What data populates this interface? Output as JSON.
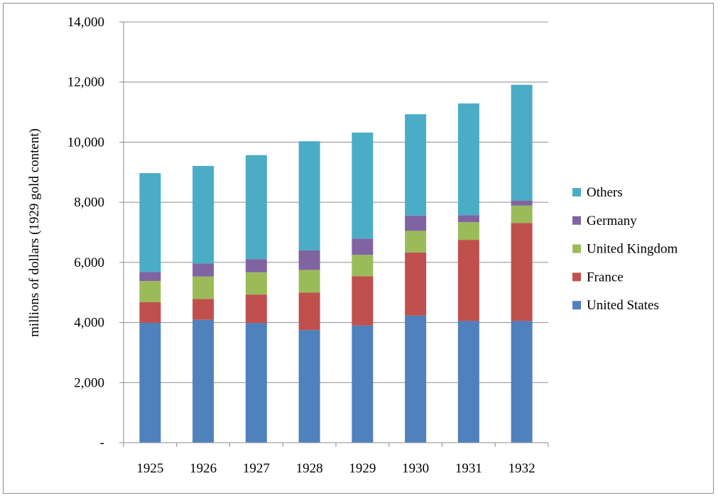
{
  "chart_data": {
    "type": "bar",
    "stacked": true,
    "title": "",
    "xlabel": "",
    "ylabel": "millions of dollars (1929 gold content)",
    "ylim": [
      0,
      14000
    ],
    "yticks": [
      0,
      2000,
      4000,
      6000,
      8000,
      10000,
      12000,
      14000
    ],
    "ytick_labels": [
      "-",
      "2,000",
      "4,000",
      "6,000",
      "8,000",
      "10,000",
      "12,000",
      "14,000"
    ],
    "grid": true,
    "legend": "right",
    "categories": [
      "1925",
      "1926",
      "1927",
      "1928",
      "1929",
      "1930",
      "1931",
      "1932"
    ],
    "series": [
      {
        "name": "United States",
        "color": "#4f81bd",
        "values": [
          3990,
          4090,
          3980,
          3750,
          3900,
          4230,
          4050,
          4050
        ]
      },
      {
        "name": "France",
        "color": "#c0504d",
        "values": [
          690,
          690,
          950,
          1250,
          1640,
          2100,
          2700,
          3260
        ]
      },
      {
        "name": "United Kingdom",
        "color": "#9bbb59",
        "values": [
          700,
          750,
          740,
          750,
          710,
          720,
          590,
          580
        ]
      },
      {
        "name": "Germany",
        "color": "#8064a2",
        "values": [
          300,
          430,
          440,
          650,
          540,
          510,
          230,
          170
        ]
      },
      {
        "name": "Others",
        "color": "#4bacc6",
        "values": [
          3290,
          3250,
          3460,
          3630,
          3530,
          3370,
          3720,
          3850
        ]
      }
    ]
  }
}
